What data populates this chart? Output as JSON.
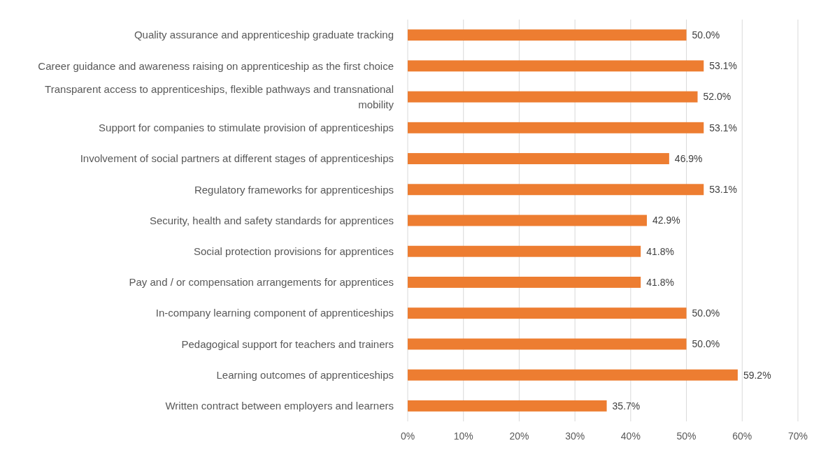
{
  "chart_data": {
    "type": "bar",
    "orientation": "horizontal",
    "categories": [
      "Quality assurance and apprenticeship graduate tracking",
      "Career guidance and awareness raising on apprenticeship as the first choice",
      "Transparent access to apprenticeships, flexible pathways and transnational mobility",
      "Support for companies to stimulate provision of apprenticeships",
      "Involvement of social partners at different stages of apprenticeships",
      "Regulatory frameworks for apprenticeships",
      "Security, health and safety standards for apprentices",
      "Social protection provisions for apprentices",
      "Pay and / or compensation arrangements for apprentices",
      "In-company learning component of apprenticeships",
      "Pedagogical support for teachers and trainers",
      "Learning outcomes of apprenticeships",
      "Written contract between employers and learners"
    ],
    "values": [
      50.0,
      53.1,
      52.0,
      53.1,
      46.9,
      53.1,
      42.9,
      41.8,
      41.8,
      50.0,
      50.0,
      59.2,
      35.7
    ],
    "value_labels": [
      "50.0%",
      "53.1%",
      "52.0%",
      "53.1%",
      "46.9%",
      "53.1%",
      "42.9%",
      "41.8%",
      "41.8%",
      "50.0%",
      "50.0%",
      "59.2%",
      "35.7%"
    ],
    "color": "#ed7d31",
    "xlim": [
      0,
      70
    ],
    "xticks": [
      {
        "value": 0,
        "label": "0%"
      },
      {
        "value": 10,
        "label": "10%"
      },
      {
        "value": 20,
        "label": "20%"
      },
      {
        "value": 30,
        "label": "30%"
      },
      {
        "value": 40,
        "label": "40%"
      },
      {
        "value": 50,
        "label": "50%"
      },
      {
        "value": 60,
        "label": "60%"
      },
      {
        "value": 70,
        "label": "70%"
      }
    ],
    "grid": "x"
  }
}
